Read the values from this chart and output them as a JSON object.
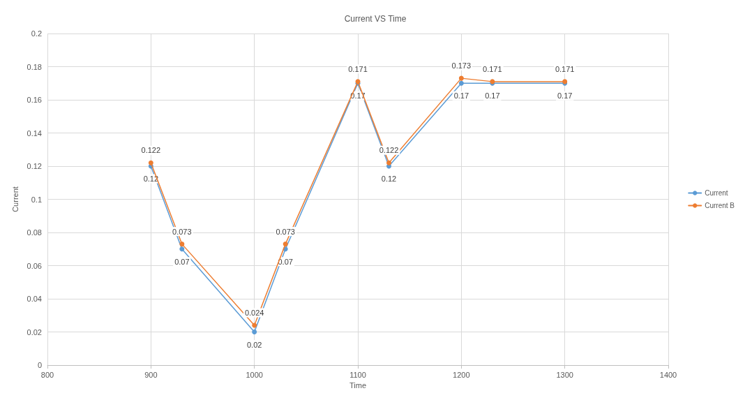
{
  "chart_data": {
    "type": "line",
    "title": "Current VS Time",
    "xlabel": "Time",
    "ylabel": "Current",
    "x": [
      900,
      930,
      1000,
      1030,
      1100,
      1130,
      1200,
      1230,
      1300
    ],
    "series": [
      {
        "name": "Current",
        "color": "#5b9bd5",
        "values": [
          0.12,
          0.07,
          0.02,
          0.07,
          0.17,
          0.12,
          0.17,
          0.17,
          0.17
        ]
      },
      {
        "name": "Current B",
        "color": "#ed7d31",
        "values": [
          0.122,
          0.073,
          0.024,
          0.073,
          0.171,
          0.122,
          0.173,
          0.171,
          0.171
        ]
      }
    ],
    "xlim": [
      800,
      1400
    ],
    "xticks": [
      800,
      900,
      1000,
      1100,
      1200,
      1300,
      1400
    ],
    "ylim": [
      0,
      0.2
    ],
    "yticks": [
      0,
      0.02,
      0.04,
      0.06,
      0.08,
      0.1,
      0.12,
      0.14,
      0.16,
      0.18,
      0.2
    ],
    "grid": true,
    "legend": "right",
    "marker": "circle",
    "line_style": "solid",
    "data_labels": true
  }
}
